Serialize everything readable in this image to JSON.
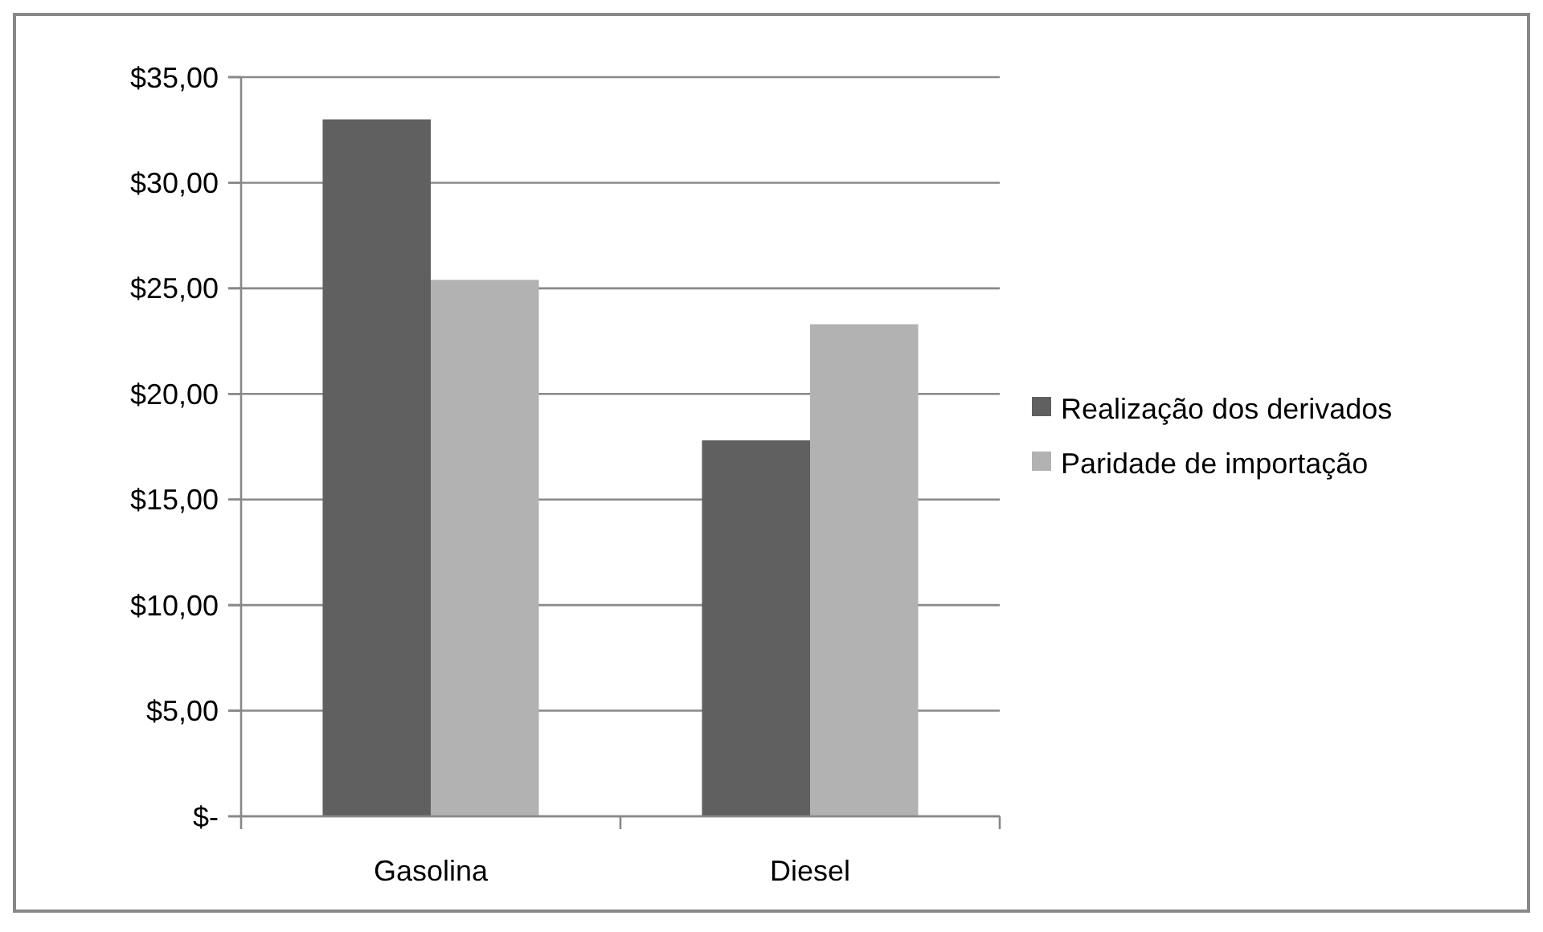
{
  "chart_data": {
    "type": "bar",
    "categories": [
      "Gasolina",
      "Diesel"
    ],
    "series": [
      {
        "name": "Realização dos derivados",
        "color": "#606060",
        "values": [
          33.0,
          17.8
        ]
      },
      {
        "name": "Paridade de importação",
        "color": "#b2b2b2",
        "values": [
          25.4,
          23.3
        ]
      }
    ],
    "ylim": [
      0,
      35
    ],
    "yticks": [
      {
        "value": 0,
        "label": "$-"
      },
      {
        "value": 5,
        "label": "$5,00"
      },
      {
        "value": 10,
        "label": "$10,00"
      },
      {
        "value": 15,
        "label": "$15,00"
      },
      {
        "value": 20,
        "label": "$20,00"
      },
      {
        "value": 25,
        "label": "$25,00"
      },
      {
        "value": 30,
        "label": "$30,00"
      },
      {
        "value": 35,
        "label": "$35,00"
      }
    ],
    "grid": "y",
    "legend": "right"
  }
}
